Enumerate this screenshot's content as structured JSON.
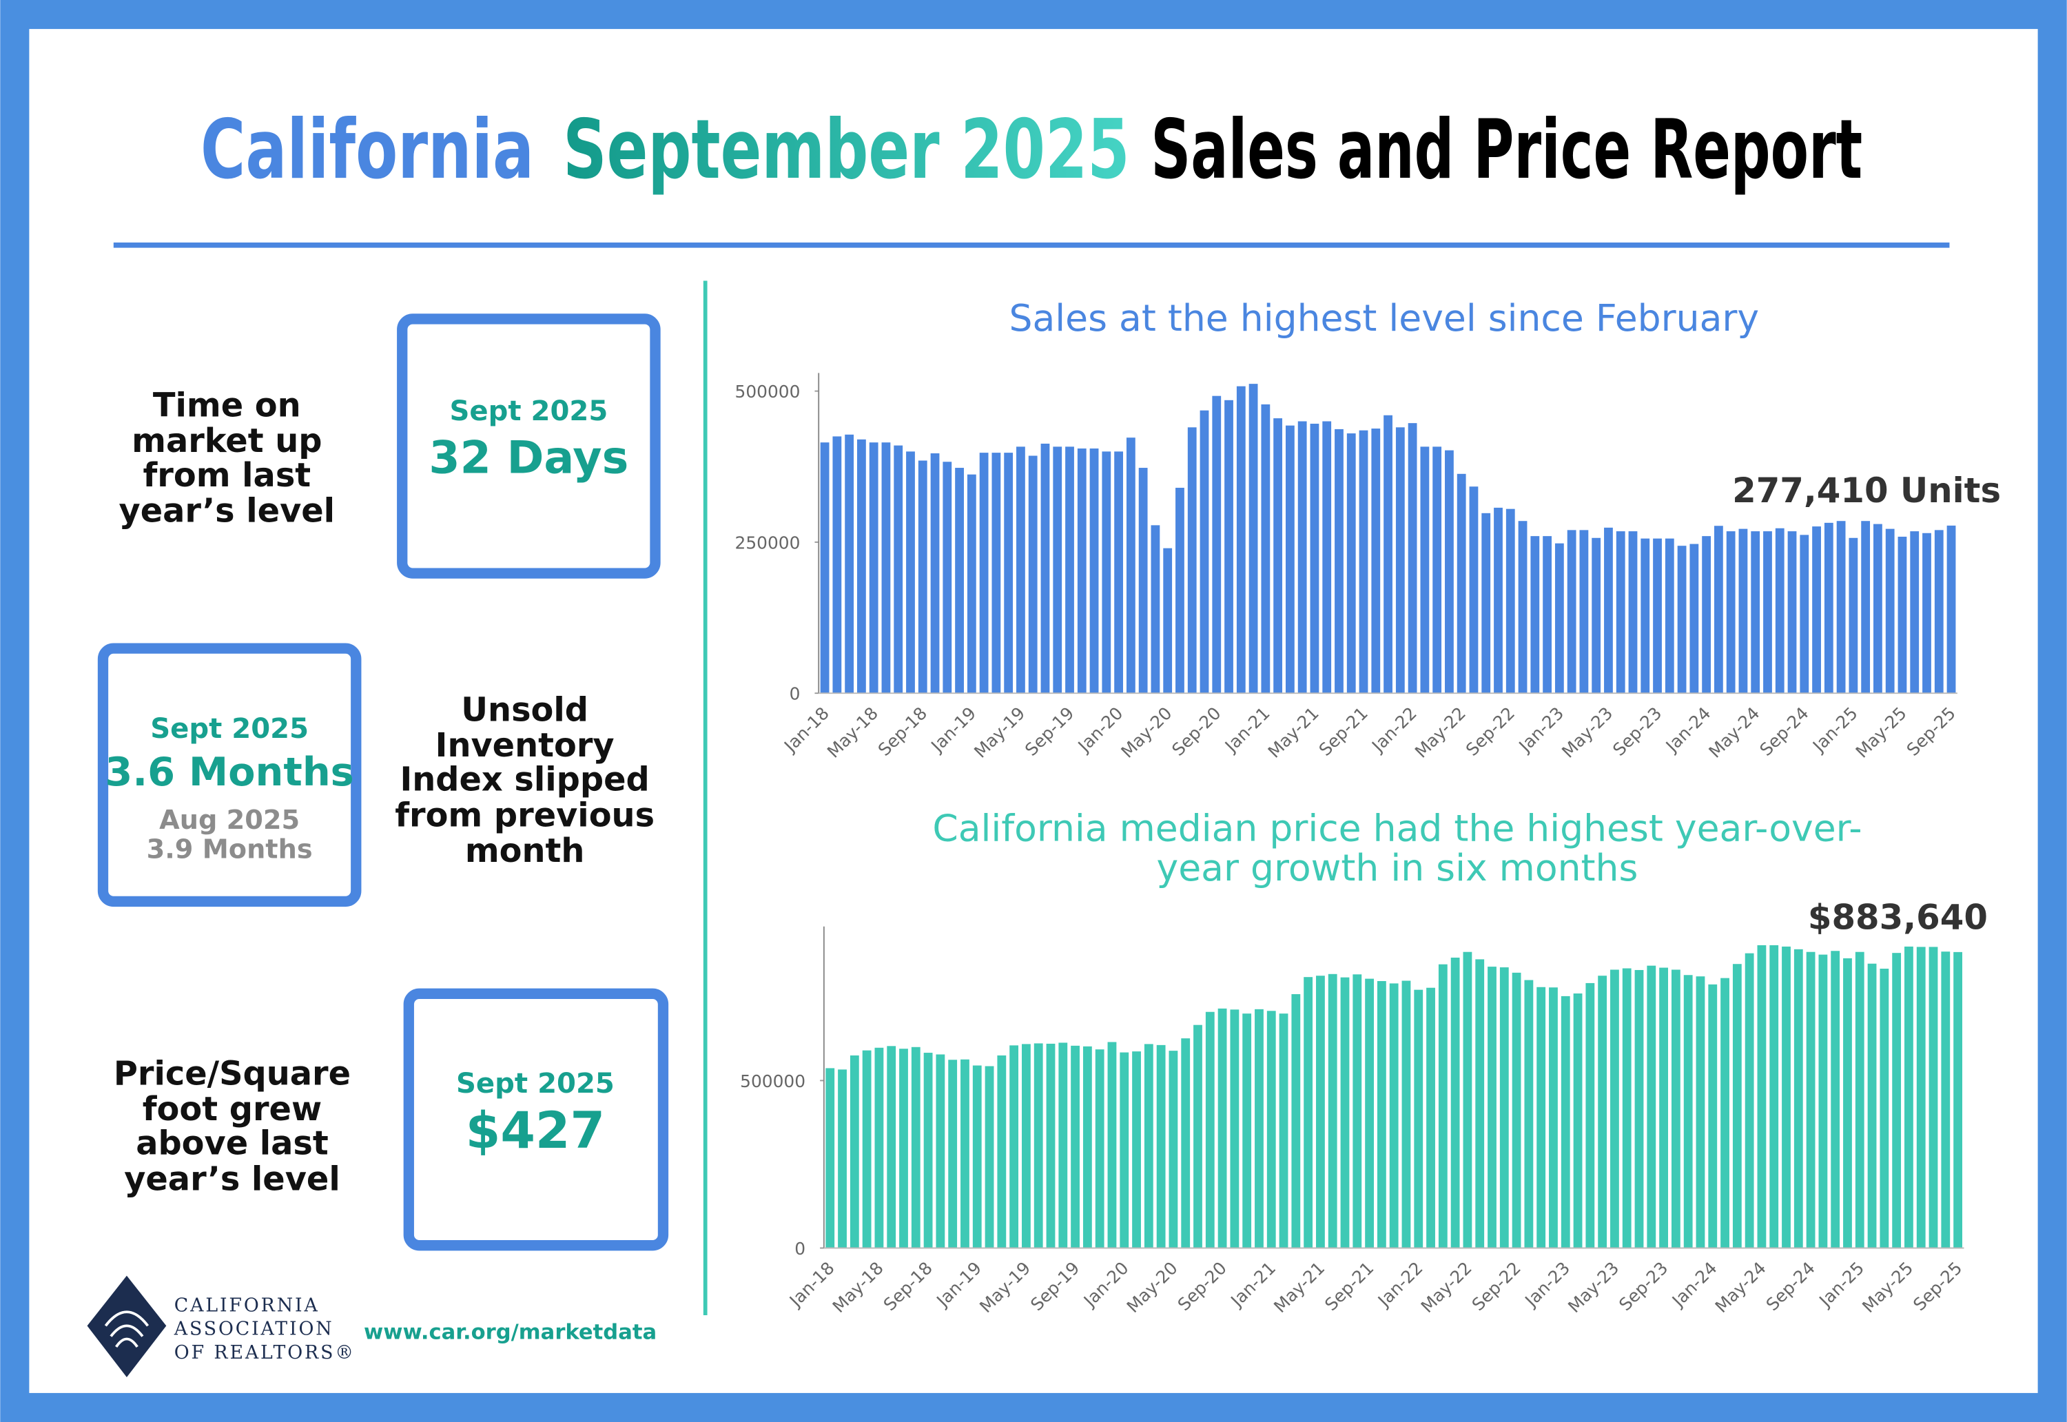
{
  "title": {
    "part1": "California",
    "part2": "September 2025",
    "part3": "Sales and Price Report"
  },
  "stats": [
    {
      "description": [
        "Time on",
        "market up",
        "from last",
        "year’s level"
      ],
      "period": "Sept 2025",
      "value": "32 Days"
    },
    {
      "description": [
        "Unsold",
        "Inventory",
        "Index slipped",
        "from previous",
        "month"
      ],
      "period": "Sept 2025",
      "value": "3.6 Months",
      "prior_period": "Aug 2025",
      "prior_value": "3.9 Months"
    },
    {
      "description": [
        "Price/Square",
        "foot grew",
        "above last",
        "year’s level"
      ],
      "period": "Sept 2025",
      "value": "$427"
    }
  ],
  "footer": {
    "logo_text": [
      "CALIFORNIA",
      "ASSOCIATION",
      "OF REALTORS®"
    ],
    "url": "www.car.org/marketdata"
  },
  "chart_data": [
    {
      "type": "bar",
      "title": [
        "Sales at the highest level since February"
      ],
      "color": "#4a86e0",
      "annotation": "277,410 Units",
      "ylim": [
        0,
        530000
      ],
      "yticks": [
        0,
        250000,
        500000
      ],
      "categories": [
        "Jan-18",
        null,
        null,
        null,
        "May-18",
        null,
        null,
        null,
        "Sep-18",
        null,
        null,
        null,
        "Jan-19",
        null,
        null,
        null,
        "May-19",
        null,
        null,
        null,
        "Sep-19",
        null,
        null,
        null,
        "Jan-20",
        null,
        null,
        null,
        "May-20",
        null,
        null,
        null,
        "Sep-20",
        null,
        null,
        null,
        "Jan-21",
        null,
        null,
        null,
        "May-21",
        null,
        null,
        null,
        "Sep-21",
        null,
        null,
        null,
        "Jan-22",
        null,
        null,
        null,
        "May-22",
        null,
        null,
        null,
        "Sep-22",
        null,
        null,
        null,
        "Jan-23",
        null,
        null,
        null,
        "May-23",
        null,
        null,
        null,
        "Sep-23",
        null,
        null,
        null,
        "Jan-24",
        null,
        null,
        null,
        "May-24",
        null,
        null,
        null,
        "Sep-24",
        null,
        null,
        null,
        "Jan-25",
        null,
        null,
        null,
        "May-25",
        null,
        null,
        null,
        "Sep-25"
      ],
      "values": [
        415000,
        425000,
        428000,
        420000,
        415000,
        415000,
        410000,
        400000,
        385000,
        397000,
        383000,
        373000,
        362000,
        398000,
        398000,
        398000,
        408000,
        393000,
        413000,
        408000,
        408000,
        405000,
        405000,
        400000,
        400000,
        423000,
        373000,
        278000,
        240000,
        340000,
        440000,
        468000,
        492000,
        485000,
        508000,
        512000,
        478000,
        455000,
        443000,
        450000,
        446000,
        450000,
        437000,
        430000,
        435000,
        438000,
        460000,
        440000,
        447000,
        408000,
        408000,
        402000,
        363000,
        342000,
        298000,
        307000,
        305000,
        285000,
        260000,
        260000,
        248000,
        270000,
        270000,
        257000,
        274000,
        268000,
        268000,
        256000,
        256000,
        256000,
        244000,
        247000,
        260000,
        277000,
        268000,
        272000,
        268000,
        268000,
        273000,
        268000,
        262000,
        276000,
        282000,
        285000,
        257000,
        285000,
        280000,
        272000,
        259000,
        268000,
        265000,
        270000,
        277410
      ]
    },
    {
      "type": "bar",
      "title": [
        "California median price had the highest year-over-",
        "year growth in six months"
      ],
      "color": "#3ec9b5",
      "annotation": "$883,640",
      "ylim": [
        0,
        960000
      ],
      "yticks": [
        0,
        500000
      ],
      "categories": [
        "Jan-18",
        null,
        null,
        null,
        "May-18",
        null,
        null,
        null,
        "Sep-18",
        null,
        null,
        null,
        "Jan-19",
        null,
        null,
        null,
        "May-19",
        null,
        null,
        null,
        "Sep-19",
        null,
        null,
        null,
        "Jan-20",
        null,
        null,
        null,
        "May-20",
        null,
        null,
        null,
        "Sep-20",
        null,
        null,
        null,
        "Jan-21",
        null,
        null,
        null,
        "May-21",
        null,
        null,
        null,
        "Sep-21",
        null,
        null,
        null,
        "Jan-22",
        null,
        null,
        null,
        "May-22",
        null,
        null,
        null,
        "Sep-22",
        null,
        null,
        null,
        "Jan-23",
        null,
        null,
        null,
        "May-23",
        null,
        null,
        null,
        "Sep-23",
        null,
        null,
        null,
        "Jan-24",
        null,
        null,
        null,
        "May-24",
        null,
        null,
        null,
        "Sep-24",
        null,
        null,
        null,
        "Jan-25",
        null,
        null,
        null,
        "May-25",
        null,
        null,
        null,
        "Sep-25"
      ],
      "values": [
        537000,
        533000,
        575000,
        590000,
        598000,
        603000,
        595000,
        600000,
        583000,
        578000,
        562000,
        563000,
        545000,
        543000,
        575000,
        605000,
        609000,
        611000,
        610000,
        613000,
        604000,
        602000,
        593000,
        615000,
        584000,
        587000,
        609000,
        606000,
        589000,
        626000,
        666000,
        705000,
        715000,
        712000,
        700000,
        713000,
        708000,
        700000,
        758000,
        809000,
        813000,
        818000,
        808000,
        817000,
        804000,
        797000,
        790000,
        798000,
        771000,
        777000,
        847000,
        867000,
        884000,
        862000,
        840000,
        838000,
        822000,
        800000,
        779000,
        778000,
        752000,
        760000,
        791000,
        813000,
        831000,
        835000,
        830000,
        843000,
        837000,
        831000,
        815000,
        811000,
        787000,
        806000,
        848000,
        880000,
        904000,
        904000,
        900000,
        892000,
        884000,
        876000,
        887000,
        865000,
        884000,
        849000,
        834000,
        881000,
        900000,
        899000,
        899000,
        885000,
        883640
      ]
    }
  ]
}
